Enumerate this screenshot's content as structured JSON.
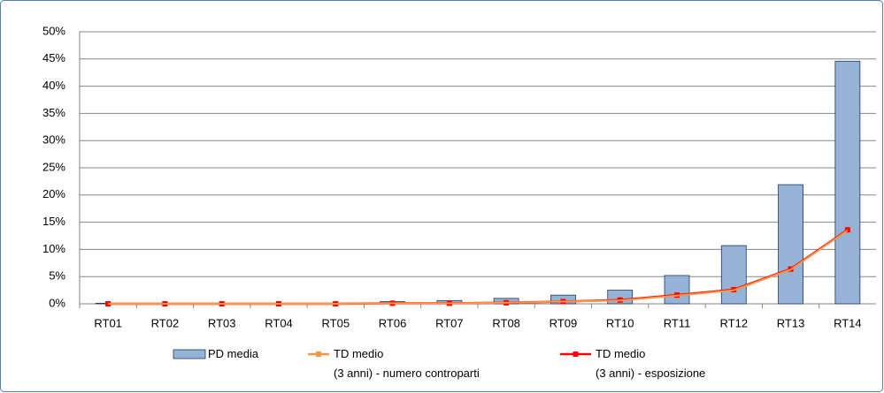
{
  "chart_data": {
    "type": "bar_line",
    "categories": [
      "RT01",
      "RT02",
      "RT03",
      "RT04",
      "RT05",
      "RT06",
      "RT07",
      "RT08",
      "RT09",
      "RT10",
      "RT11",
      "RT12",
      "RT13",
      "RT14"
    ],
    "series": [
      {
        "name": "PD media",
        "type": "bar",
        "color": "#95b3d7",
        "values": [
          0.1,
          0.1,
          0.1,
          0.1,
          0.1,
          0.4,
          0.6,
          1.0,
          1.6,
          2.5,
          5.2,
          10.7,
          21.9,
          44.6
        ]
      },
      {
        "name": "TD medio\n(3 anni) - numero controparti",
        "type": "line",
        "color": "#f79646",
        "values": [
          0,
          0,
          0,
          0,
          0,
          0.1,
          0.1,
          0.2,
          0.4,
          0.6,
          1.5,
          2.5,
          6.3,
          13.5
        ]
      },
      {
        "name": "TD medio\n(3 anni) - esposizione",
        "type": "line",
        "color": "#ff0000",
        "values": [
          0,
          0,
          0,
          0,
          0,
          0.1,
          0.1,
          0.2,
          0.4,
          0.7,
          1.6,
          2.6,
          6.4,
          13.6
        ]
      }
    ],
    "ylim": [
      0,
      50
    ],
    "yticks": [
      {
        "value": 0,
        "label": "0%"
      },
      {
        "value": 5,
        "label": "5%"
      },
      {
        "value": 10,
        "label": "10%"
      },
      {
        "value": 15,
        "label": "15%"
      },
      {
        "value": 20,
        "label": "20%"
      },
      {
        "value": 25,
        "label": "25%"
      },
      {
        "value": 30,
        "label": "30%"
      },
      {
        "value": 35,
        "label": "35%"
      },
      {
        "value": 40,
        "label": "40%"
      },
      {
        "value": 45,
        "label": "45%"
      },
      {
        "value": 50,
        "label": "50%"
      }
    ],
    "grid": true,
    "legend": "bottom"
  }
}
